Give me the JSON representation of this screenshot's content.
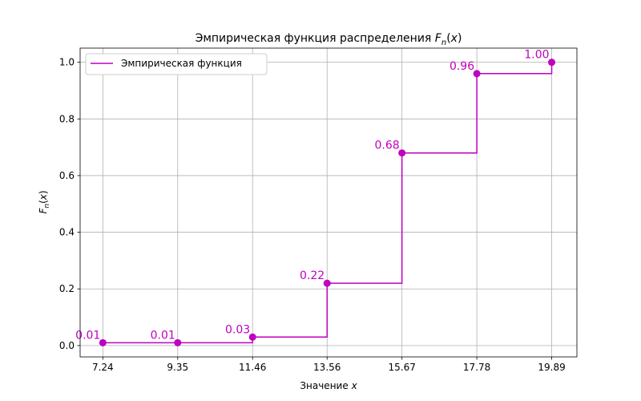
{
  "chart_data": {
    "type": "line",
    "step": "post",
    "title": "Эмпирическая функция распределения",
    "title_math": "F_n(x)",
    "xlabel": "Значение",
    "xlabel_math": "x",
    "ylabel_math": "F_n(x)",
    "x": [
      7.24,
      9.35,
      11.46,
      13.56,
      15.67,
      17.78,
      19.89
    ],
    "x_tick_labels": [
      "7.24",
      "9.35",
      "11.46",
      "13.56",
      "15.67",
      "17.78",
      "19.89"
    ],
    "y_ticks": [
      0.0,
      0.2,
      0.4,
      0.6,
      0.8,
      1.0
    ],
    "y_tick_labels": [
      "0.0",
      "0.2",
      "0.4",
      "0.6",
      "0.8",
      "1.0"
    ],
    "xlim": [
      6.6,
      20.6
    ],
    "ylim": [
      -0.04,
      1.05
    ],
    "grid": true,
    "legend_placement": "upper-left",
    "series": [
      {
        "name": "Эмпирическая функция",
        "color": "#bf00bf",
        "values": [
          0.01,
          0.01,
          0.03,
          0.22,
          0.68,
          0.96,
          1.0
        ],
        "data_labels": [
          "0.01",
          "0.01",
          "0.03",
          "0.22",
          "0.68",
          "0.96",
          "1.00"
        ]
      }
    ]
  }
}
